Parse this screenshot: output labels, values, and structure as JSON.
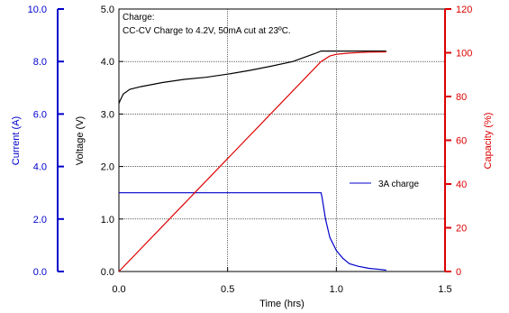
{
  "chart_data": {
    "type": "line",
    "annotation": [
      "Charge:",
      "CC-CV Charge to 4.2V, 50mA cut at 23ºC."
    ],
    "xlabel": "Time (hrs)",
    "xlim": [
      0,
      1.5
    ],
    "xticks": [
      "0.0",
      "0.5",
      "1.0",
      "1.5"
    ],
    "grid": true,
    "legend": {
      "position": "inside-right",
      "entries": [
        "3A charge"
      ]
    },
    "axes": {
      "voltage": {
        "label": "Voltage (V)",
        "range": [
          0,
          5
        ],
        "ticks": [
          "0.0",
          "1.0",
          "2.0",
          "3.0",
          "4.0",
          "5.0"
        ],
        "color": "#000000"
      },
      "current": {
        "label": "Current (A)",
        "range": [
          0,
          10
        ],
        "ticks": [
          "0.0",
          "2.0",
          "4.0",
          "6.0",
          "8.0",
          "10.0"
        ],
        "color": "#0000cc"
      },
      "capacity": {
        "label": "Capacity (%)",
        "range": [
          0,
          120
        ],
        "ticks": [
          "0",
          "20",
          "40",
          "60",
          "80",
          "100",
          "120"
        ],
        "color": "#dd0000"
      }
    },
    "series": [
      {
        "name": "3A charge",
        "axis": "current",
        "color": "#0000cc",
        "x": [
          0,
          0.93,
          0.935,
          0.95,
          0.97,
          1.0,
          1.03,
          1.06,
          1.1,
          1.15,
          1.2,
          1.23
        ],
        "y": [
          3.0,
          3.0,
          2.8,
          2.0,
          1.3,
          0.8,
          0.5,
          0.3,
          0.2,
          0.12,
          0.08,
          0.05
        ]
      },
      {
        "axis": "voltage",
        "color": "#000000",
        "x": [
          0,
          0.005,
          0.02,
          0.05,
          0.1,
          0.2,
          0.3,
          0.4,
          0.5,
          0.6,
          0.7,
          0.8,
          0.9,
          0.93,
          1.0,
          1.1,
          1.23
        ],
        "y": [
          3.2,
          3.25,
          3.38,
          3.47,
          3.52,
          3.6,
          3.66,
          3.7,
          3.76,
          3.83,
          3.91,
          4.0,
          4.15,
          4.2,
          4.2,
          4.2,
          4.2
        ]
      },
      {
        "axis": "capacity",
        "color": "#dd0000",
        "x": [
          0,
          0.93,
          0.97,
          1.0,
          1.05,
          1.1,
          1.15,
          1.23
        ],
        "y": [
          0,
          96,
          98.5,
          99.3,
          99.8,
          100.1,
          100.3,
          100.4
        ]
      }
    ]
  }
}
